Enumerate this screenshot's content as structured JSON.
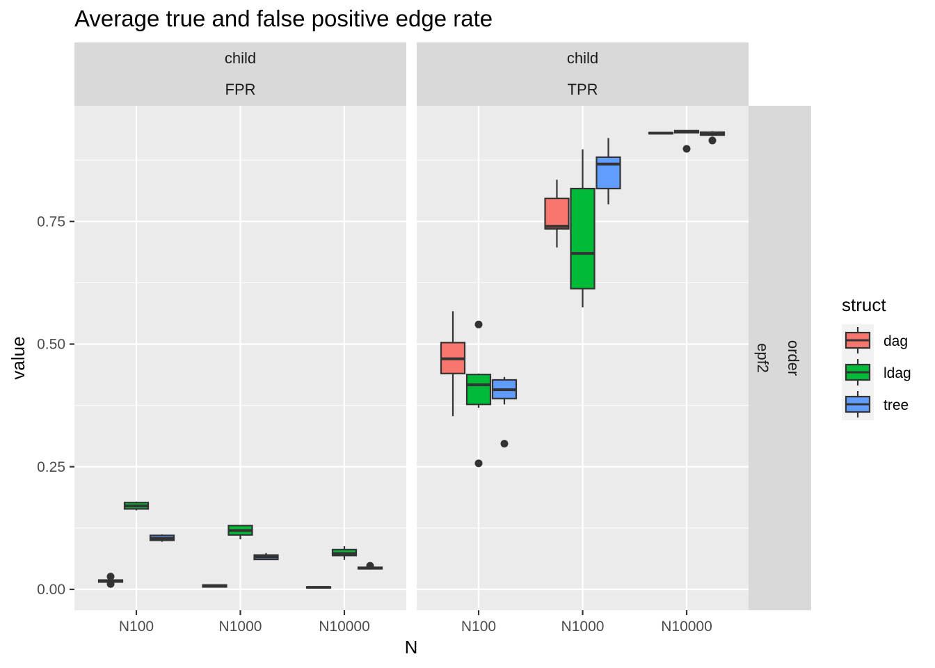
{
  "chart_data": {
    "type": "boxplot",
    "title": "Average true and false positive edge rate",
    "xlabel": "N",
    "ylabel": "value",
    "categories": [
      "N100",
      "N1000",
      "N10000"
    ],
    "yticks": [
      "0.00",
      "0.25",
      "0.50",
      "0.75"
    ],
    "ylim": [
      -0.04,
      0.99
    ],
    "grid": true,
    "legend": {
      "title": "struct",
      "position": "right",
      "entries": [
        {
          "name": "dag",
          "color": "#F8766D"
        },
        {
          "name": "ldag",
          "color": "#00BA38"
        },
        {
          "name": "tree",
          "color": "#619CFF"
        }
      ]
    },
    "row_strip": {
      "top": "order",
      "bottom": "epf2"
    },
    "panels": [
      {
        "strip_top": "child",
        "strip_bottom": "FPR",
        "boxes": [
          {
            "category": "N100",
            "struct": "dag",
            "lower_whisker": 0.014,
            "q1": 0.015,
            "median": 0.017,
            "q3": 0.019,
            "upper_whisker": 0.02,
            "outliers": [
              0.011,
              0.026
            ]
          },
          {
            "category": "N100",
            "struct": "ldag",
            "lower_whisker": 0.161,
            "q1": 0.164,
            "median": 0.17,
            "q3": 0.177,
            "upper_whisker": 0.179,
            "outliers": []
          },
          {
            "category": "N100",
            "struct": "tree",
            "lower_whisker": 0.097,
            "q1": 0.1,
            "median": 0.104,
            "q3": 0.11,
            "upper_whisker": 0.112,
            "outliers": []
          },
          {
            "category": "N1000",
            "struct": "dag",
            "lower_whisker": 0.004,
            "q1": 0.005,
            "median": 0.007,
            "q3": 0.009,
            "upper_whisker": 0.01,
            "outliers": []
          },
          {
            "category": "N1000",
            "struct": "ldag",
            "lower_whisker": 0.102,
            "q1": 0.111,
            "median": 0.12,
            "q3": 0.13,
            "upper_whisker": 0.131,
            "outliers": []
          },
          {
            "category": "N1000",
            "struct": "tree",
            "lower_whisker": 0.06,
            "q1": 0.061,
            "median": 0.066,
            "q3": 0.07,
            "upper_whisker": 0.074,
            "outliers": []
          },
          {
            "category": "N10000",
            "struct": "dag",
            "lower_whisker": 0.002,
            "q1": 0.003,
            "median": 0.004,
            "q3": 0.005,
            "upper_whisker": 0.006,
            "outliers": []
          },
          {
            "category": "N10000",
            "struct": "ldag",
            "lower_whisker": 0.06,
            "q1": 0.069,
            "median": 0.073,
            "q3": 0.081,
            "upper_whisker": 0.088,
            "outliers": []
          },
          {
            "category": "N10000",
            "struct": "tree",
            "lower_whisker": 0.041,
            "q1": 0.042,
            "median": 0.043,
            "q3": 0.045,
            "upper_whisker": 0.046,
            "outliers": [
              0.048
            ]
          }
        ]
      },
      {
        "strip_top": "child",
        "strip_bottom": "TPR",
        "boxes": [
          {
            "category": "N100",
            "struct": "dag",
            "lower_whisker": 0.353,
            "q1": 0.44,
            "median": 0.47,
            "q3": 0.503,
            "upper_whisker": 0.567,
            "outliers": []
          },
          {
            "category": "N100",
            "struct": "ldag",
            "lower_whisker": 0.37,
            "q1": 0.377,
            "median": 0.417,
            "q3": 0.438,
            "upper_whisker": 0.44,
            "outliers": [
              0.54,
              0.257
            ]
          },
          {
            "category": "N100",
            "struct": "tree",
            "lower_whisker": 0.377,
            "q1": 0.389,
            "median": 0.407,
            "q3": 0.427,
            "upper_whisker": 0.433,
            "outliers": [
              0.297
            ]
          },
          {
            "category": "N1000",
            "struct": "dag",
            "lower_whisker": 0.697,
            "q1": 0.735,
            "median": 0.74,
            "q3": 0.797,
            "upper_whisker": 0.835,
            "outliers": []
          },
          {
            "category": "N1000",
            "struct": "ldag",
            "lower_whisker": 0.575,
            "q1": 0.613,
            "median": 0.685,
            "q3": 0.817,
            "upper_whisker": 0.897,
            "outliers": []
          },
          {
            "category": "N1000",
            "struct": "tree",
            "lower_whisker": 0.785,
            "q1": 0.817,
            "median": 0.867,
            "q3": 0.881,
            "upper_whisker": 0.92,
            "outliers": []
          },
          {
            "category": "N10000",
            "struct": "dag",
            "lower_whisker": 0.928,
            "q1": 0.929,
            "median": 0.93,
            "q3": 0.931,
            "upper_whisker": 0.932,
            "outliers": []
          },
          {
            "category": "N10000",
            "struct": "ldag",
            "lower_whisker": 0.93,
            "q1": 0.931,
            "median": 0.933,
            "q3": 0.935,
            "upper_whisker": 0.936,
            "outliers": [
              0.898
            ]
          },
          {
            "category": "N10000",
            "struct": "tree",
            "lower_whisker": 0.924,
            "q1": 0.926,
            "median": 0.929,
            "q3": 0.932,
            "upper_whisker": 0.934,
            "outliers": [
              0.915
            ]
          }
        ]
      }
    ]
  }
}
